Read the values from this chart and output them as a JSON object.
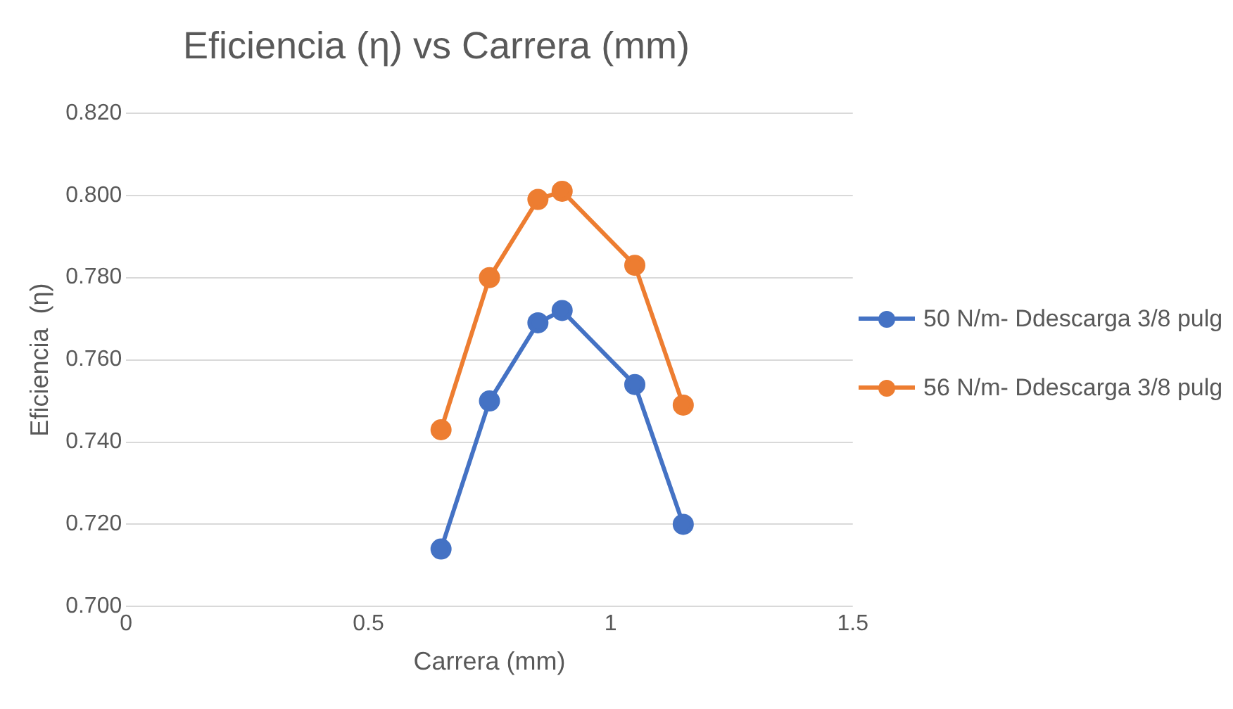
{
  "chart_data": {
    "type": "line",
    "title": "Eficiencia (η) vs Carrera (mm)",
    "xlabel": "Carrera (mm)",
    "ylabel": "Eficiencia  (η)",
    "x": [
      0.65,
      0.75,
      0.85,
      0.9,
      1.05,
      1.15
    ],
    "series": [
      {
        "name": "50 N/m- Ddescarga 3/8 pulg",
        "color": "#4472c4",
        "values": [
          0.714,
          0.75,
          0.769,
          0.772,
          0.754,
          0.72
        ]
      },
      {
        "name": "56 N/m- Ddescarga 3/8 pulg",
        "color": "#ed7d31",
        "values": [
          0.743,
          0.78,
          0.799,
          0.801,
          0.783,
          0.749
        ]
      }
    ],
    "xlim": [
      0,
      1.5
    ],
    "xticks": [
      0,
      0.5,
      1,
      1.5
    ],
    "ylim": [
      0.7,
      0.82
    ],
    "yticks": [
      {
        "value": 0.7,
        "label": "0.700"
      },
      {
        "value": 0.72,
        "label": "0.720"
      },
      {
        "value": 0.74,
        "label": "0.740"
      },
      {
        "value": 0.76,
        "label": "0.760"
      },
      {
        "value": 0.78,
        "label": "0.780"
      },
      {
        "value": 0.8,
        "label": "0.800"
      },
      {
        "value": 0.82,
        "label": "0.820"
      }
    ],
    "grid": "y",
    "legend": "right",
    "marker": "circle",
    "line_style": "solid"
  }
}
